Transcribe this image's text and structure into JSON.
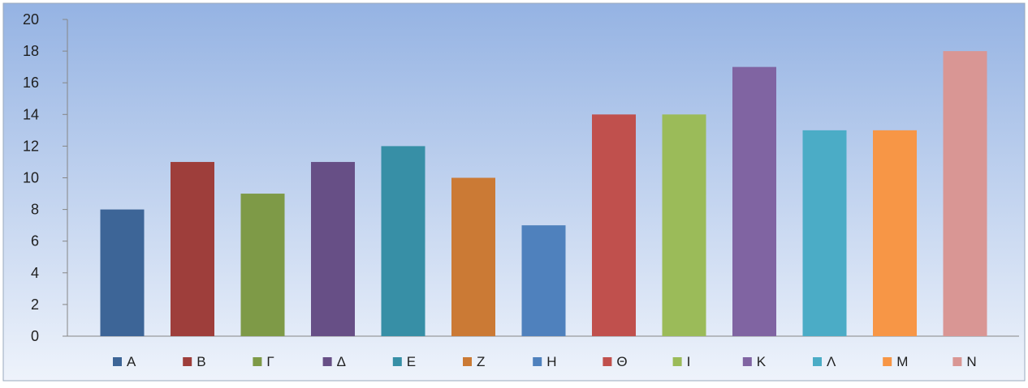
{
  "chart_data": {
    "type": "bar",
    "categories": [
      "Α",
      "Β",
      "Γ",
      "Δ",
      "Ε",
      "Ζ",
      "Η",
      "Θ",
      "Ι",
      "Κ",
      "Λ",
      "Μ",
      "Ν"
    ],
    "values": [
      8,
      11,
      9,
      11,
      12,
      10,
      7,
      14,
      14,
      17,
      13,
      13,
      18
    ],
    "colors": [
      "#3d6597",
      "#9e3e3b",
      "#7e9a47",
      "#674f86",
      "#378fa6",
      "#cb7a35",
      "#4f81bd",
      "#c0504d",
      "#9bbb59",
      "#8064a2",
      "#4bacc6",
      "#f79646",
      "#d99694"
    ],
    "yticks": [
      "0",
      "2",
      "4",
      "6",
      "8",
      "10",
      "12",
      "14",
      "16",
      "18",
      "20"
    ],
    "ylim": [
      0,
      20
    ],
    "grid": false,
    "legend_position": "bottom",
    "background": {
      "top": "#95b3e3",
      "bottom": "#eef3fb"
    }
  }
}
